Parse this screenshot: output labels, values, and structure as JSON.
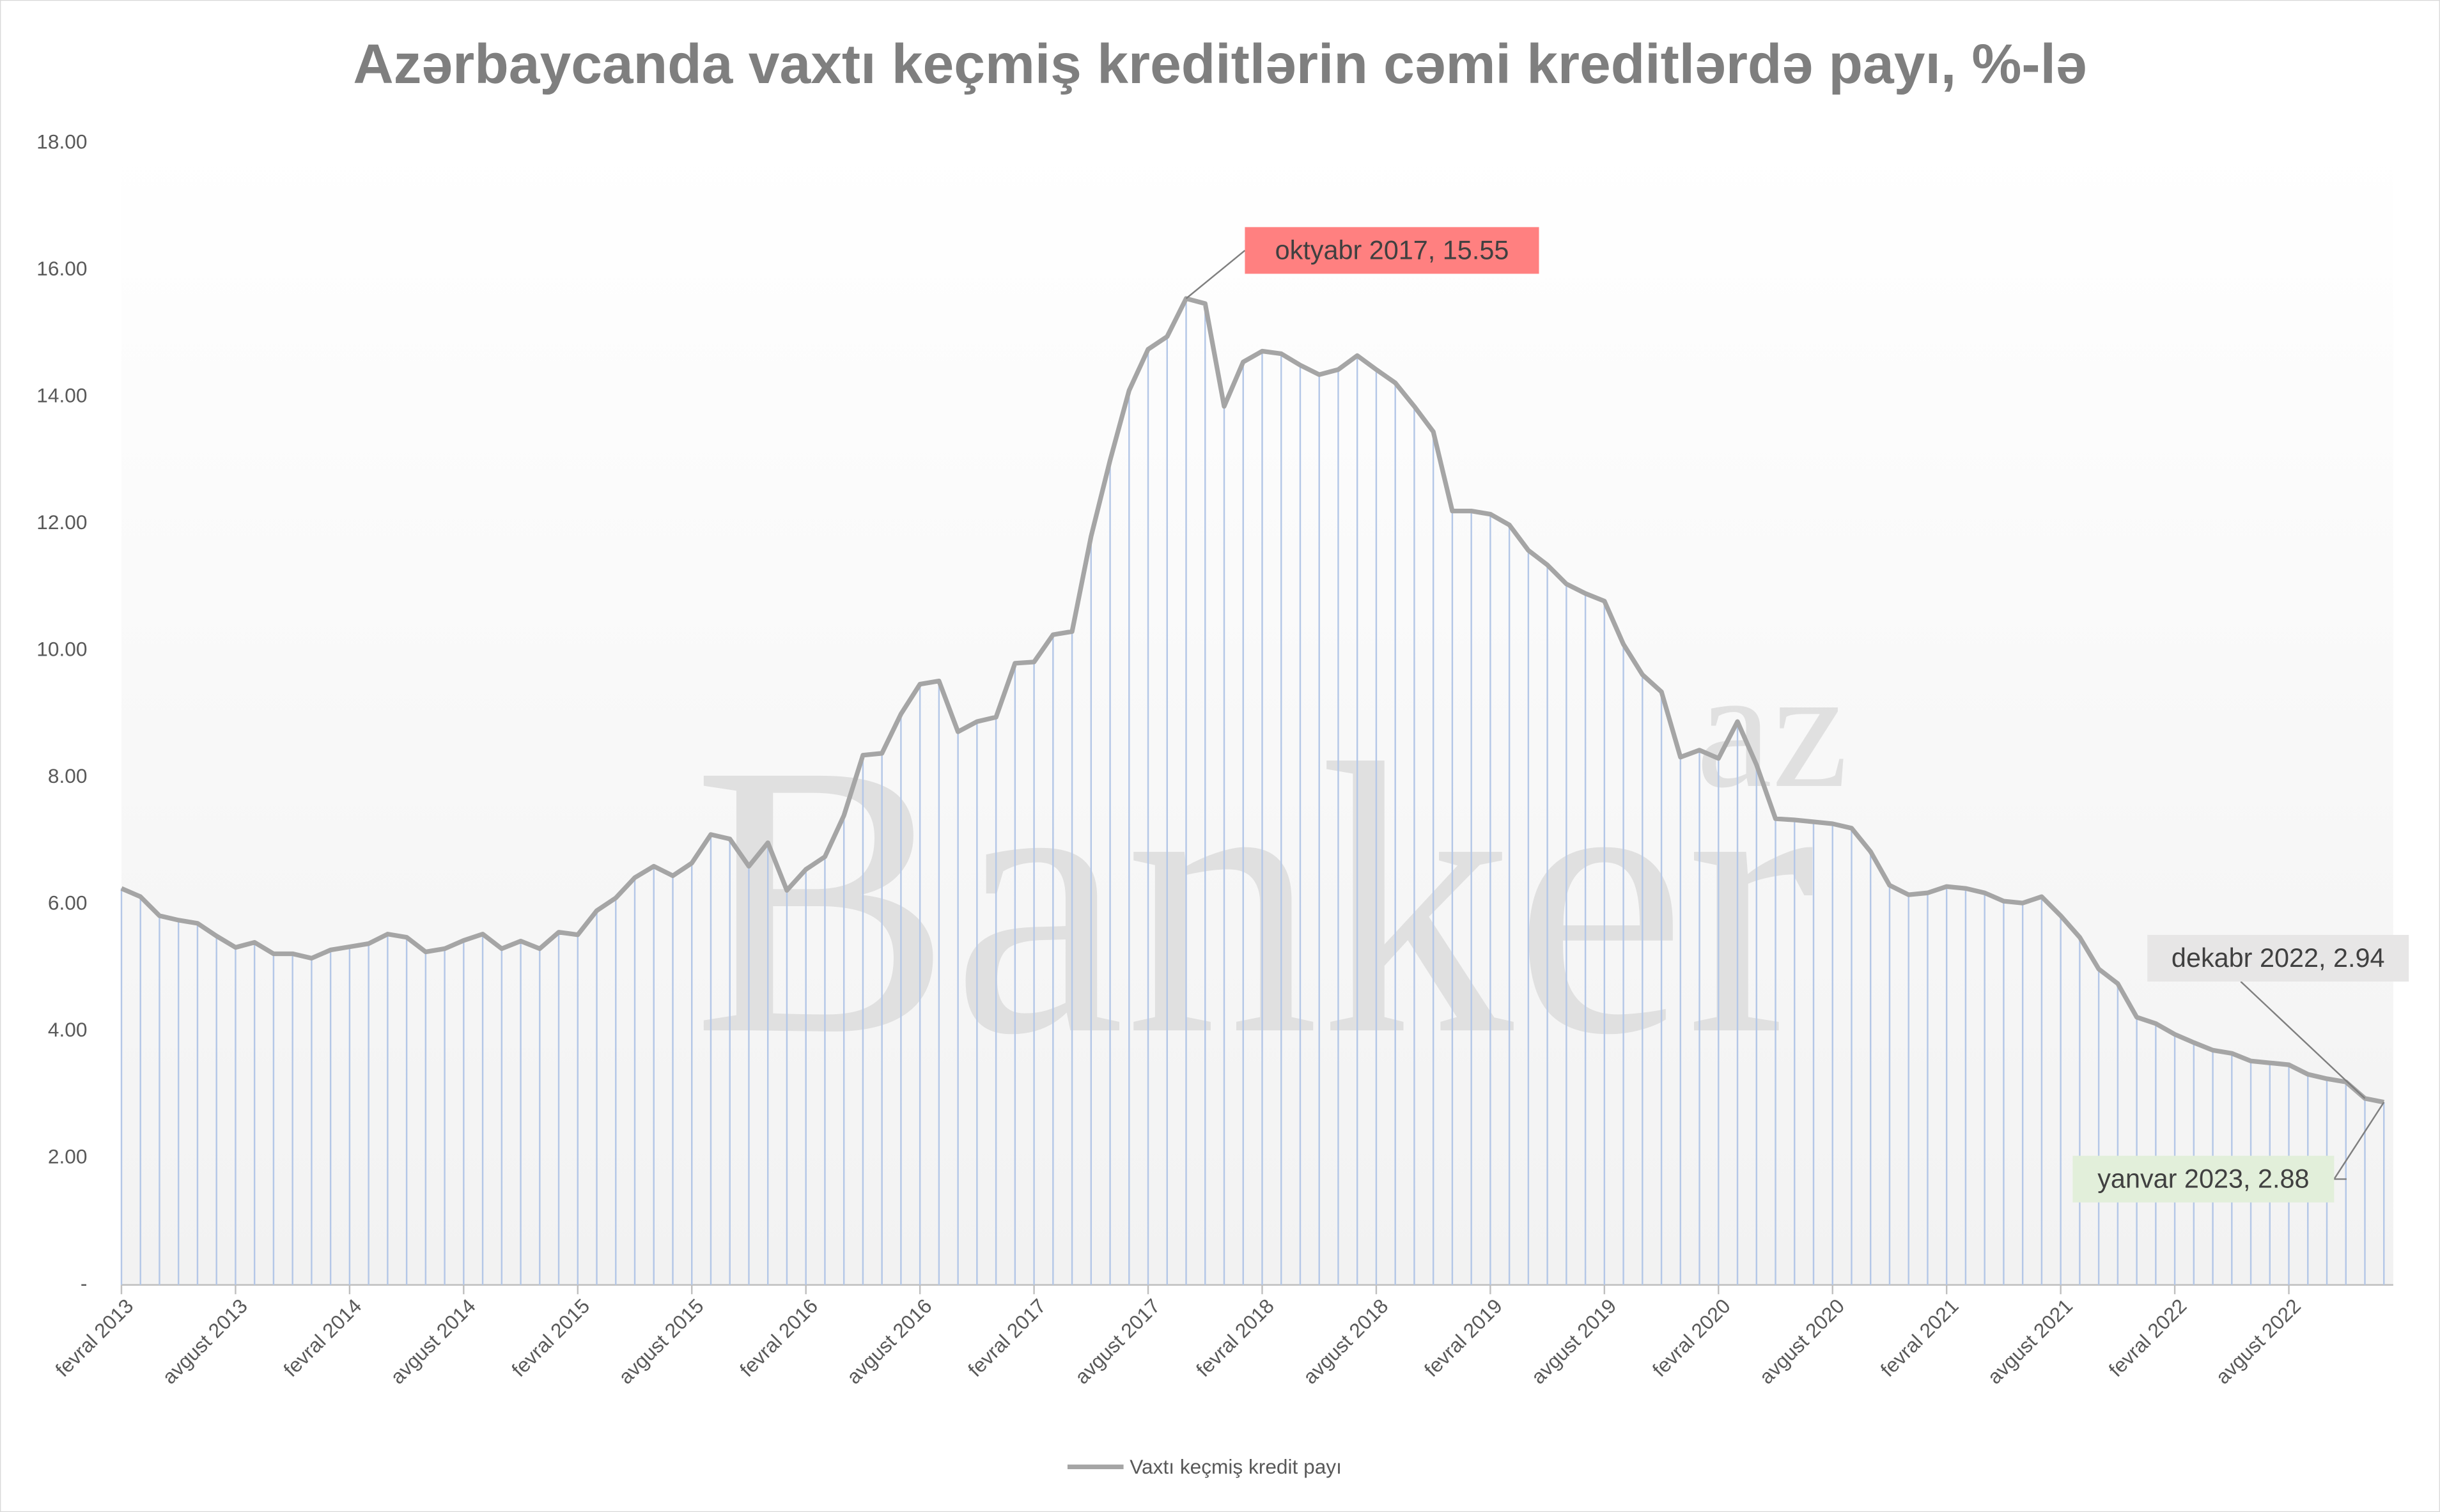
{
  "chart_data": {
    "type": "line",
    "title": "Azərbaycanda vaxtı keçmiş kreditlərin cəmi kreditlərdə payı, %-lə",
    "watermark": [
      "Banker",
      "az"
    ],
    "categories": [
      "fevral 2013",
      null,
      null,
      null,
      null,
      null,
      "avgust 2013",
      null,
      null,
      null,
      null,
      null,
      "fevral 2014",
      null,
      null,
      null,
      null,
      null,
      "avgust 2014",
      null,
      null,
      null,
      null,
      null,
      "fevral 2015",
      null,
      null,
      null,
      null,
      null,
      "avgust 2015",
      null,
      null,
      null,
      null,
      null,
      "fevral 2016",
      null,
      null,
      null,
      null,
      null,
      "avgust 2016",
      null,
      null,
      null,
      null,
      null,
      "fevral 2017",
      null,
      null,
      null,
      null,
      null,
      "avgust 2017",
      null,
      null,
      null,
      null,
      null,
      "fevral 2018",
      null,
      null,
      null,
      null,
      null,
      "avgust 2018",
      null,
      null,
      null,
      null,
      null,
      "fevral 2019",
      null,
      null,
      null,
      null,
      null,
      "avgust 2019",
      null,
      null,
      null,
      null,
      null,
      "fevral 2020",
      null,
      null,
      null,
      null,
      null,
      "avgust 2020",
      null,
      null,
      null,
      null,
      null,
      "fevral 2021",
      null,
      null,
      null,
      null,
      null,
      "avgust 2021",
      null,
      null,
      null,
      null,
      null,
      "fevral 2022",
      null,
      null,
      null,
      null,
      null,
      "avgust 2022",
      null,
      null,
      null,
      null,
      null
    ],
    "series": [
      {
        "name": "Vaxtı keçmiş kredit payı",
        "color": "#a5a5a5",
        "values": [
          6.25,
          6.12,
          5.82,
          5.75,
          5.7,
          5.5,
          5.32,
          5.4,
          5.22,
          5.22,
          5.15,
          5.28,
          5.33,
          5.38,
          5.53,
          5.48,
          5.25,
          5.3,
          5.43,
          5.53,
          5.3,
          5.42,
          5.3,
          5.56,
          5.52,
          5.9,
          6.1,
          6.42,
          6.6,
          6.45,
          6.65,
          7.1,
          7.03,
          6.6,
          6.97,
          6.22,
          6.55,
          6.75,
          7.4,
          8.35,
          8.38,
          9.0,
          9.47,
          9.52,
          8.72,
          8.88,
          8.95,
          9.8,
          9.82,
          10.25,
          10.3,
          11.8,
          13.0,
          14.1,
          14.75,
          14.95,
          15.55,
          15.47,
          13.85,
          14.55,
          14.72,
          14.68,
          14.5,
          14.35,
          14.43,
          14.65,
          14.43,
          14.22,
          13.85,
          13.45,
          12.2,
          12.2,
          12.15,
          11.98,
          11.58,
          11.35,
          11.05,
          10.9,
          10.78,
          10.1,
          9.62,
          9.35,
          8.32,
          8.43,
          8.3,
          8.88,
          8.2,
          7.35,
          7.33,
          7.3,
          7.27,
          7.2,
          6.83,
          6.3,
          6.15,
          6.18,
          6.28,
          6.25,
          6.18,
          6.05,
          6.02,
          6.12,
          5.82,
          5.48,
          4.98,
          4.75,
          4.22,
          4.12,
          3.95,
          3.82,
          3.7,
          3.65,
          3.53,
          3.5,
          3.47,
          3.32,
          3.25,
          3.2,
          2.94,
          2.88
        ]
      }
    ],
    "drop_line_color": "#b4c7e7",
    "ylim": [
      0,
      18
    ],
    "yticks": [
      {
        "value": 0,
        "label": "-"
      },
      {
        "value": 2,
        "label": "2.00"
      },
      {
        "value": 4,
        "label": "4.00"
      },
      {
        "value": 6,
        "label": "6.00"
      },
      {
        "value": 8,
        "label": "8.00"
      },
      {
        "value": 10,
        "label": "10.00"
      },
      {
        "value": 12,
        "label": "12.00"
      },
      {
        "value": 14,
        "label": "14.00"
      },
      {
        "value": 16,
        "label": "16.00"
      },
      {
        "value": 18,
        "label": "18.00"
      }
    ],
    "annotations": [
      {
        "text": "oktyabr 2017,  15.55",
        "color": "#ff8080"
      },
      {
        "text": "dekabr 2022,  2.94",
        "color": "#e7e6e6"
      },
      {
        "text": "yanvar 2023,  2.88",
        "color": "#e2efda"
      }
    ],
    "legend": "bottom"
  }
}
